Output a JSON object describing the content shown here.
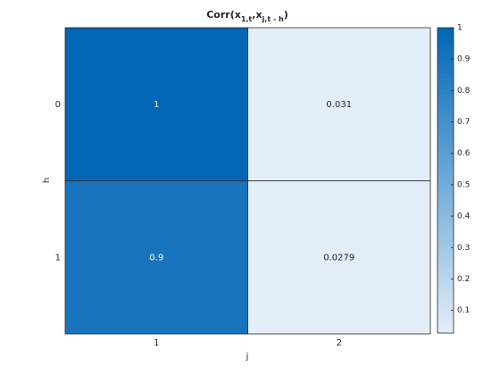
{
  "chart_data": {
    "type": "heatmap",
    "title": [
      "Corr(x",
      "1,t",
      ",x",
      "j,t - h",
      ")"
    ],
    "x_label": "j",
    "y_label": "h",
    "x_categories": [
      "1",
      "2"
    ],
    "y_categories": [
      "0",
      "1"
    ],
    "values": [
      [
        1,
        0.031
      ],
      [
        0.9,
        0.0279
      ]
    ],
    "colormap": [
      "#e3eef9",
      "#0066b5"
    ],
    "clim": [
      0.0279,
      1
    ],
    "cticks": [
      0.1,
      0.2,
      0.3,
      0.4,
      0.5,
      0.6,
      0.7,
      0.8,
      0.9,
      1
    ]
  }
}
